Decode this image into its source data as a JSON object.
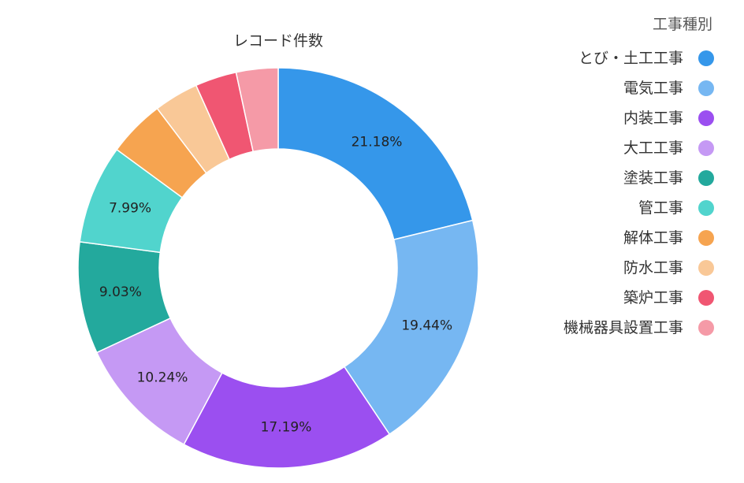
{
  "chart_data": {
    "type": "pie",
    "variant": "donut",
    "title": "レコード件数",
    "legend_title": "工事種別",
    "legend_position": "right",
    "categories": [
      "とび・土工工事",
      "電気工事",
      "内装工事",
      "大工工事",
      "塗装工事",
      "管工事",
      "解体工事",
      "防水工事",
      "築炉工事",
      "機械器具設置工事"
    ],
    "values": [
      21.18,
      19.44,
      17.19,
      10.24,
      9.03,
      7.99,
      4.6,
      3.6,
      3.35,
      3.38
    ],
    "data_labels": [
      "21.18%",
      "19.44%",
      "17.19%",
      "10.24%",
      "9.03%",
      "7.99%",
      "",
      "",
      "",
      ""
    ],
    "colors": [
      "#3597ea",
      "#76b7f2",
      "#9b4ff0",
      "#c599f4",
      "#23a99d",
      "#51d4cd",
      "#f6a450",
      "#f9c897",
      "#f05672",
      "#f59aa7"
    ]
  }
}
